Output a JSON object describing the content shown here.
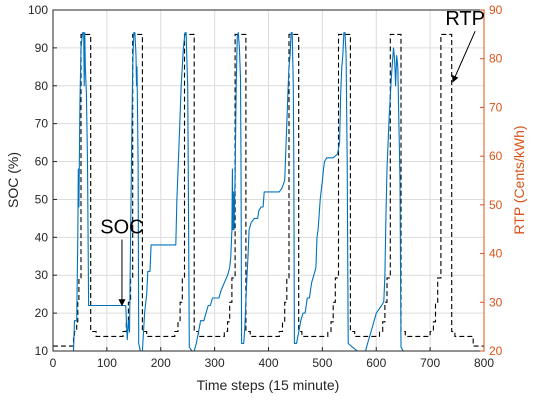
{
  "chart_data": {
    "type": "line",
    "xlabel": "Time steps (15 minute)",
    "ylabel_left": "SOC (%)",
    "ylabel_right": "RTP (Cents/kWh)",
    "xlim": [
      0,
      800
    ],
    "ylim_left": [
      10,
      100
    ],
    "ylim_right": [
      20,
      90
    ],
    "xticks": [
      0,
      100,
      200,
      300,
      400,
      500,
      600,
      700,
      800
    ],
    "yticks_left": [
      10,
      20,
      30,
      40,
      50,
      60,
      70,
      80,
      90,
      100
    ],
    "yticks_right": [
      20,
      30,
      40,
      50,
      60,
      70,
      80,
      90
    ],
    "grid": true,
    "colors": {
      "soc": "#0072BD",
      "rtp": "#000000",
      "right_axis": "#D95319"
    },
    "annotations": [
      {
        "text": "SOC",
        "x": 128,
        "y": 41,
        "arrow_to": [
          128,
          22
        ]
      },
      {
        "text": "RTP",
        "x": 765,
        "y": 96,
        "arrow_to": [
          742,
          81
        ]
      }
    ],
    "series": [
      {
        "axis": "left",
        "style": "solid",
        "points": [
          [
            0,
            10
          ],
          [
            38,
            10
          ],
          [
            40,
            18
          ],
          [
            44,
            18
          ],
          [
            46,
            40
          ],
          [
            47,
            58
          ],
          [
            48,
            48
          ],
          [
            50,
            75
          ],
          [
            52,
            90
          ],
          [
            55,
            94
          ],
          [
            57,
            94
          ],
          [
            58,
            80
          ],
          [
            59,
            94
          ],
          [
            60,
            85
          ],
          [
            62,
            78
          ],
          [
            64,
            60
          ],
          [
            66,
            22
          ],
          [
            68,
            22
          ],
          [
            80,
            22
          ],
          [
            100,
            22
          ],
          [
            120,
            22
          ],
          [
            130,
            22
          ],
          [
            135,
            22
          ],
          [
            138,
            13
          ],
          [
            140,
            18
          ],
          [
            142,
            15
          ],
          [
            144,
            40
          ],
          [
            146,
            65
          ],
          [
            148,
            85
          ],
          [
            150,
            94
          ],
          [
            152,
            94
          ],
          [
            154,
            88
          ],
          [
            155,
            80
          ],
          [
            156,
            85
          ],
          [
            158,
            60
          ],
          [
            159,
            12
          ],
          [
            162,
            10
          ],
          [
            166,
            10
          ],
          [
            168,
            15
          ],
          [
            170,
            20
          ],
          [
            174,
            25
          ],
          [
            176,
            31
          ],
          [
            178,
            31
          ],
          [
            180,
            31
          ],
          [
            182,
            38
          ],
          [
            186,
            38
          ],
          [
            190,
            38
          ],
          [
            210,
            38
          ],
          [
            220,
            38
          ],
          [
            228,
            38
          ],
          [
            230,
            50
          ],
          [
            234,
            65
          ],
          [
            238,
            80
          ],
          [
            242,
            90
          ],
          [
            245,
            94
          ],
          [
            247,
            94
          ],
          [
            249,
            85
          ],
          [
            250,
            80
          ],
          [
            251,
            60
          ],
          [
            253,
            11
          ],
          [
            258,
            10
          ],
          [
            262,
            10
          ],
          [
            266,
            12
          ],
          [
            270,
            15
          ],
          [
            274,
            18
          ],
          [
            280,
            18
          ],
          [
            284,
            20
          ],
          [
            288,
            22
          ],
          [
            292,
            22
          ],
          [
            296,
            24
          ],
          [
            300,
            24
          ],
          [
            304,
            24
          ],
          [
            308,
            24
          ],
          [
            312,
            26
          ],
          [
            318,
            28
          ],
          [
            324,
            30
          ],
          [
            328,
            32
          ],
          [
            330,
            35
          ],
          [
            332,
            42
          ],
          [
            333,
            58
          ],
          [
            334,
            42
          ],
          [
            335,
            52
          ],
          [
            336,
            42
          ],
          [
            338,
            56
          ],
          [
            340,
            80
          ],
          [
            342,
            93
          ],
          [
            344,
            94
          ],
          [
            346,
            90
          ],
          [
            348,
            82
          ],
          [
            349,
            60
          ],
          [
            350,
            12
          ],
          [
            354,
            12
          ],
          [
            356,
            16
          ],
          [
            360,
            30
          ],
          [
            362,
            35
          ],
          [
            364,
            42
          ],
          [
            368,
            44
          ],
          [
            374,
            45
          ],
          [
            380,
            45
          ],
          [
            382,
            47
          ],
          [
            386,
            48
          ],
          [
            390,
            48
          ],
          [
            392,
            52
          ],
          [
            396,
            52
          ],
          [
            400,
            52
          ],
          [
            410,
            52
          ],
          [
            420,
            52
          ],
          [
            425,
            53
          ],
          [
            430,
            55
          ],
          [
            434,
            70
          ],
          [
            436,
            78
          ],
          [
            438,
            85
          ],
          [
            440,
            88
          ],
          [
            442,
            94
          ],
          [
            444,
            94
          ],
          [
            446,
            80
          ],
          [
            447,
            60
          ],
          [
            448,
            12
          ],
          [
            452,
            12
          ],
          [
            456,
            15
          ],
          [
            460,
            18
          ],
          [
            464,
            20
          ],
          [
            468,
            20
          ],
          [
            472,
            24
          ],
          [
            476,
            24
          ],
          [
            478,
            26
          ],
          [
            480,
            28
          ],
          [
            484,
            30
          ],
          [
            488,
            32
          ],
          [
            490,
            40
          ],
          [
            492,
            42
          ],
          [
            496,
            50
          ],
          [
            500,
            55
          ],
          [
            502,
            58
          ],
          [
            504,
            60
          ],
          [
            508,
            61
          ],
          [
            520,
            61
          ],
          [
            528,
            62
          ],
          [
            532,
            65
          ],
          [
            534,
            78
          ],
          [
            536,
            85
          ],
          [
            538,
            88
          ],
          [
            540,
            94
          ],
          [
            542,
            94
          ],
          [
            544,
            88
          ],
          [
            546,
            60
          ],
          [
            548,
            12
          ],
          [
            556,
            11
          ],
          [
            565,
            10
          ],
          [
            575,
            10
          ],
          [
            580,
            10
          ],
          [
            584,
            12
          ],
          [
            590,
            15
          ],
          [
            600,
            20
          ],
          [
            610,
            22
          ],
          [
            614,
            23
          ],
          [
            616,
            30
          ],
          [
            618,
            45
          ],
          [
            620,
            58
          ],
          [
            624,
            72
          ],
          [
            628,
            82
          ],
          [
            632,
            90
          ],
          [
            634,
            87
          ],
          [
            636,
            80
          ],
          [
            638,
            88
          ],
          [
            640,
            85
          ],
          [
            642,
            70
          ],
          [
            644,
            55
          ],
          [
            646,
            11
          ],
          [
            650,
            10
          ]
        ]
      },
      {
        "axis": "right",
        "style": "dashed",
        "points": [
          [
            0,
            21
          ],
          [
            38,
            21
          ],
          [
            38,
            23
          ],
          [
            40,
            23
          ],
          [
            40,
            24
          ],
          [
            44,
            24
          ],
          [
            44,
            26
          ],
          [
            46,
            26
          ],
          [
            46,
            30
          ],
          [
            48,
            30
          ],
          [
            48,
            35
          ],
          [
            52,
            35
          ],
          [
            52,
            85
          ],
          [
            70,
            85
          ],
          [
            70,
            24
          ],
          [
            80,
            24
          ],
          [
            80,
            23
          ],
          [
            130,
            23
          ],
          [
            130,
            24
          ],
          [
            136,
            24
          ],
          [
            136,
            26
          ],
          [
            140,
            26
          ],
          [
            140,
            30
          ],
          [
            144,
            30
          ],
          [
            144,
            35
          ],
          [
            148,
            35
          ],
          [
            148,
            85
          ],
          [
            166,
            85
          ],
          [
            166,
            24
          ],
          [
            174,
            24
          ],
          [
            174,
            23
          ],
          [
            226,
            23
          ],
          [
            226,
            24
          ],
          [
            232,
            24
          ],
          [
            232,
            26
          ],
          [
            236,
            26
          ],
          [
            236,
            30
          ],
          [
            240,
            30
          ],
          [
            240,
            35
          ],
          [
            244,
            35
          ],
          [
            244,
            85
          ],
          [
            262,
            85
          ],
          [
            262,
            24
          ],
          [
            270,
            24
          ],
          [
            270,
            23
          ],
          [
            318,
            23
          ],
          [
            318,
            24
          ],
          [
            324,
            24
          ],
          [
            324,
            26
          ],
          [
            328,
            26
          ],
          [
            328,
            30
          ],
          [
            332,
            30
          ],
          [
            332,
            35
          ],
          [
            338,
            35
          ],
          [
            338,
            85
          ],
          [
            358,
            85
          ],
          [
            358,
            24
          ],
          [
            366,
            24
          ],
          [
            366,
            23
          ],
          [
            420,
            23
          ],
          [
            420,
            24
          ],
          [
            426,
            24
          ],
          [
            426,
            26
          ],
          [
            430,
            26
          ],
          [
            430,
            30
          ],
          [
            434,
            30
          ],
          [
            434,
            35
          ],
          [
            438,
            35
          ],
          [
            438,
            85
          ],
          [
            456,
            85
          ],
          [
            456,
            24
          ],
          [
            462,
            24
          ],
          [
            462,
            23
          ],
          [
            510,
            23
          ],
          [
            510,
            24
          ],
          [
            516,
            24
          ],
          [
            516,
            26
          ],
          [
            520,
            26
          ],
          [
            520,
            30
          ],
          [
            524,
            30
          ],
          [
            524,
            35
          ],
          [
            530,
            35
          ],
          [
            530,
            85
          ],
          [
            552,
            85
          ],
          [
            552,
            24
          ],
          [
            560,
            24
          ],
          [
            560,
            23
          ],
          [
            606,
            23
          ],
          [
            606,
            24
          ],
          [
            612,
            24
          ],
          [
            612,
            26
          ],
          [
            616,
            26
          ],
          [
            616,
            30
          ],
          [
            620,
            30
          ],
          [
            620,
            35
          ],
          [
            626,
            35
          ],
          [
            626,
            85
          ],
          [
            646,
            85
          ],
          [
            646,
            24
          ],
          [
            654,
            24
          ],
          [
            654,
            23
          ],
          [
            700,
            23
          ],
          [
            700,
            24
          ],
          [
            706,
            24
          ],
          [
            706,
            26
          ],
          [
            710,
            26
          ],
          [
            710,
            30
          ],
          [
            714,
            30
          ],
          [
            714,
            35
          ],
          [
            720,
            35
          ],
          [
            720,
            85
          ],
          [
            740,
            85
          ],
          [
            740,
            24
          ],
          [
            746,
            24
          ],
          [
            746,
            23
          ],
          [
            780,
            23
          ],
          [
            780,
            21
          ],
          [
            800,
            21
          ]
        ]
      }
    ]
  }
}
